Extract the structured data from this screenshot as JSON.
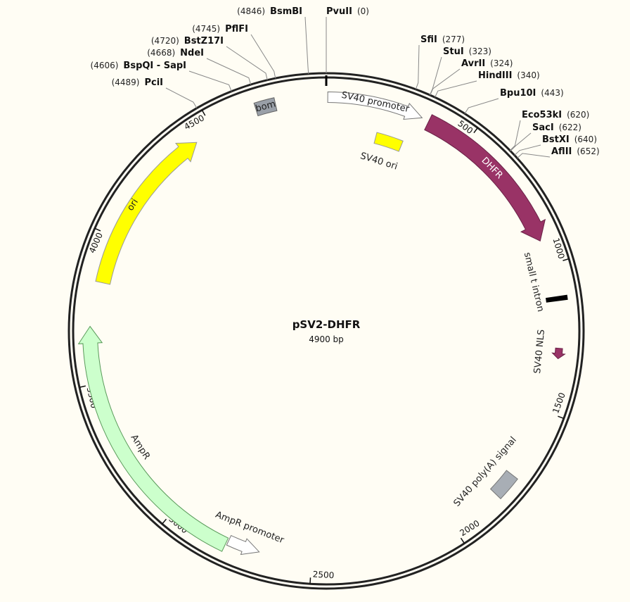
{
  "map": {
    "title": "pSV2-DHFR",
    "size": "4900 bp",
    "scale_ticks": [
      500,
      1000,
      1500,
      2000,
      2500,
      3000,
      3500,
      4000,
      4500
    ],
    "sites": [
      {
        "name": "PvuII",
        "position": "(0)"
      },
      {
        "name": "SfiI",
        "position": "(277)"
      },
      {
        "name": "StuI",
        "position": "(323)"
      },
      {
        "name": "AvrII",
        "position": "(324)"
      },
      {
        "name": "HindIII",
        "position": "(340)"
      },
      {
        "name": "Bpu10I",
        "position": "(443)"
      },
      {
        "name": "Eco53kI",
        "position": "(620)"
      },
      {
        "name": "SacI",
        "position": "(622)"
      },
      {
        "name": "BstXI",
        "position": "(640)"
      },
      {
        "name": "AflII",
        "position": "(652)"
      },
      {
        "name": "PciI",
        "position": "(4489)"
      },
      {
        "name": "BspQI - SapI",
        "position": "(4606)"
      },
      {
        "name": "NdeI",
        "position": "(4668)"
      },
      {
        "name": "BstZ17I",
        "position": "(4720)"
      },
      {
        "name": "PflFI",
        "position": "(4745)"
      },
      {
        "name": "BsmBI",
        "position": "(4846)"
      }
    ],
    "features": [
      {
        "label": "SV40 promoter"
      },
      {
        "label": "SV40 ori"
      },
      {
        "label": "DHFR"
      },
      {
        "label": "small t intron"
      },
      {
        "label": "SV40 NLS"
      },
      {
        "label": "SV40 poly(A) signal"
      },
      {
        "label": "AmpR promoter"
      },
      {
        "label": "AmpR"
      },
      {
        "label": "ori"
      },
      {
        "label": "bom"
      }
    ]
  }
}
